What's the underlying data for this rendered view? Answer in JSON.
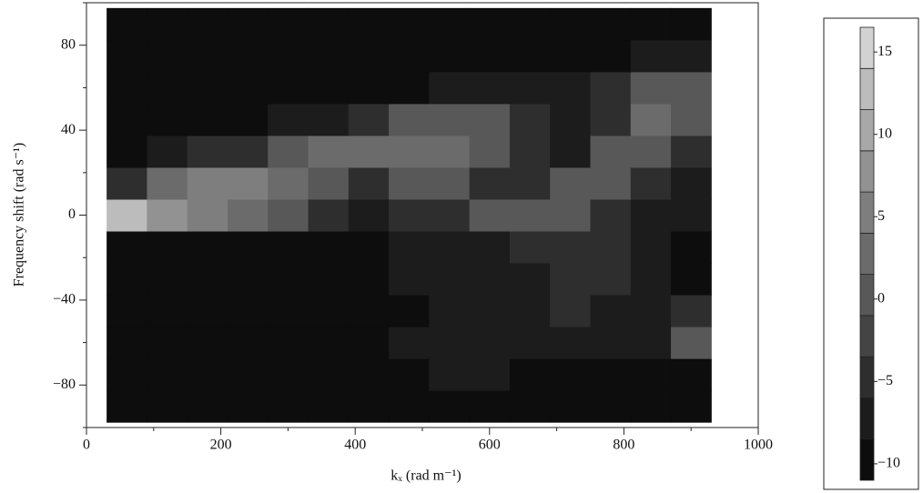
{
  "chart_data": {
    "type": "contour",
    "xlabel": "kₓ (rad m⁻¹)",
    "ylabel": "Frequency shift (rad s⁻¹)",
    "xlim": [
      0,
      1000
    ],
    "ylim": [
      -100,
      100
    ],
    "xticks": [
      0,
      200,
      400,
      600,
      800,
      1000
    ],
    "xminorticks": [
      100,
      300,
      500,
      700,
      900
    ],
    "yticks": [
      {
        "value": -80,
        "label": "−80"
      },
      {
        "value": -40,
        "label": "−40"
      },
      0,
      40,
      80
    ],
    "yminorticks": [
      -100,
      -60,
      -20,
      20,
      60,
      100
    ],
    "x": [
      60,
      120,
      180,
      240,
      300,
      360,
      420,
      480,
      540,
      600,
      660,
      720,
      780,
      840,
      900
    ],
    "y": [
      -90,
      -75,
      -60,
      -45,
      -30,
      -15,
      0,
      15,
      30,
      45,
      60,
      75,
      90
    ],
    "z": [
      [
        -10,
        -10,
        -10,
        -10,
        -10,
        -10,
        -10,
        -10,
        -10,
        -10,
        -10,
        -10,
        -10,
        -10,
        -10
      ],
      [
        -10,
        -10,
        -10,
        -10,
        -10,
        -10,
        -10,
        -10,
        -7,
        -7,
        -10,
        -10,
        -10,
        -10,
        -10
      ],
      [
        -10,
        -10,
        -10,
        -10,
        -10,
        -10,
        -10,
        -7,
        -7,
        -7,
        -7,
        -7,
        -7,
        -7,
        -1
      ],
      [
        -10,
        -10,
        -10,
        -10,
        -10,
        -10,
        -10,
        -10,
        -7,
        -7,
        -7,
        -4,
        -7,
        -7,
        -4
      ],
      [
        -10,
        -10,
        -10,
        -10,
        -10,
        -10,
        -10,
        -7,
        -7,
        -7,
        -7,
        -4,
        -4,
        -7,
        -10
      ],
      [
        -10,
        -10,
        -10,
        -10,
        -10,
        -10,
        -10,
        -7,
        -7,
        -7,
        -4,
        -4,
        -4,
        -7,
        -10
      ],
      [
        12,
        8,
        5,
        2,
        -1,
        -4,
        -7,
        -4,
        -4,
        -1,
        -1,
        -1,
        -4,
        -7,
        -7
      ],
      [
        -4,
        2,
        5,
        5,
        2,
        -1,
        -4,
        -1,
        -1,
        -4,
        -4,
        -1,
        -1,
        -4,
        -7
      ],
      [
        -10,
        -7,
        -4,
        -4,
        -1,
        2,
        2,
        2,
        2,
        -1,
        -4,
        -7,
        -1,
        -1,
        -4
      ],
      [
        -10,
        -10,
        -10,
        -10,
        -7,
        -7,
        -4,
        -1,
        -1,
        -1,
        -4,
        -7,
        -4,
        2,
        -1
      ],
      [
        -10,
        -10,
        -10,
        -10,
        -10,
        -10,
        -10,
        -10,
        -7,
        -7,
        -7,
        -7,
        -4,
        -1,
        -1
      ],
      [
        -10,
        -10,
        -10,
        -10,
        -10,
        -10,
        -10,
        -10,
        -10,
        -10,
        -10,
        -10,
        -10,
        -7,
        -7
      ],
      [
        -10,
        -10,
        -10,
        -10,
        -10,
        -10,
        -10,
        -10,
        -10,
        -10,
        -10,
        -10,
        -10,
        -10,
        -10
      ]
    ],
    "levels": [
      -11,
      -8.5,
      -6,
      -3.5,
      -1,
      1.5,
      4,
      6.5,
      9,
      11.5,
      14,
      16.5
    ],
    "colors": [
      "#0d0d0d",
      "#1c1c1c",
      "#2e2e2e",
      "#444444",
      "#585858",
      "#6b6b6b",
      "#7e7e7e",
      "#929292",
      "#a8a8a8",
      "#bcbcbc",
      "#d2d2d2"
    ],
    "cbarticks": [
      {
        "value": -10,
        "label": "−10"
      },
      {
        "value": -5,
        "label": "−5"
      },
      0,
      5,
      10,
      15
    ]
  }
}
